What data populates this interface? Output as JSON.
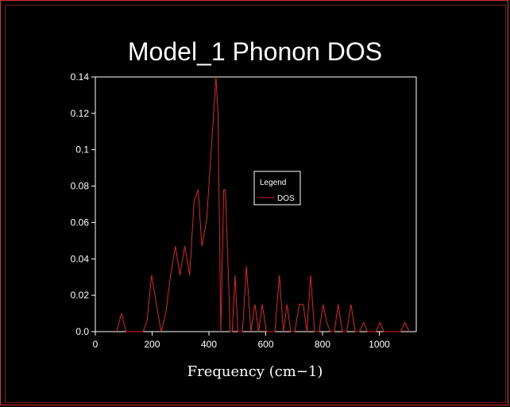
{
  "chart_data": {
    "type": "line",
    "title": "Model_1 Phonon DOS",
    "xlabel": "Frequency (cm−1)",
    "ylabel": "",
    "xlim": [
      0,
      1130
    ],
    "ylim": [
      0,
      0.14
    ],
    "x_ticks": [
      "0",
      "200",
      "400",
      "600",
      "800",
      "1000"
    ],
    "x_tick_values": [
      0,
      200,
      400,
      600,
      800,
      1000
    ],
    "y_ticks": [
      "0.0",
      "0.02",
      "0.04",
      "0.06",
      "0.08",
      "0.1",
      "0.12",
      "0.14"
    ],
    "y_tick_values": [
      0,
      0.02,
      0.04,
      0.06,
      0.08,
      0.1,
      0.12,
      0.14
    ],
    "legend": {
      "title": "Legend",
      "placement": "center-right"
    },
    "grid": false,
    "series": [
      {
        "name": "DOS",
        "color": "#e02020",
        "x": [
          75,
          92,
          108,
          168,
          182,
          198,
          215,
          232,
          248,
          265,
          282,
          298,
          315,
          332,
          348,
          362,
          375,
          392,
          408,
          425,
          432,
          442,
          452,
          458,
          465,
          475,
          482,
          492,
          502,
          518,
          532,
          548,
          562,
          575,
          588,
          602,
          618,
          632,
          648,
          662,
          675,
          688,
          702,
          718,
          732,
          745,
          758,
          772,
          788,
          802,
          815,
          828,
          842,
          855,
          870,
          885,
          900,
          915,
          930,
          945,
          958,
          972,
          988,
          1002,
          1015,
          1075,
          1090,
          1105
        ],
        "values": [
          0.0,
          0.01,
          0.0,
          0.0,
          0.006,
          0.031,
          0.015,
          0.0,
          0.01,
          0.031,
          0.047,
          0.031,
          0.047,
          0.031,
          0.072,
          0.078,
          0.047,
          0.061,
          0.1,
          0.14,
          0.12,
          0.0,
          0.078,
          0.078,
          0.047,
          0.0,
          0.0,
          0.031,
          0.0,
          0.0,
          0.036,
          0.0,
          0.015,
          0.0,
          0.015,
          0.0,
          0.0,
          0.0,
          0.031,
          0.0,
          0.015,
          0.0,
          0.0,
          0.015,
          0.015,
          0.0,
          0.031,
          0.0,
          0.0,
          0.015,
          0.005,
          0.0,
          0.0,
          0.015,
          0.0,
          0.0,
          0.015,
          0.0,
          0.0,
          0.005,
          0.0,
          0.0,
          0.0,
          0.005,
          0.0,
          0.0,
          0.005,
          0.0
        ]
      }
    ]
  }
}
